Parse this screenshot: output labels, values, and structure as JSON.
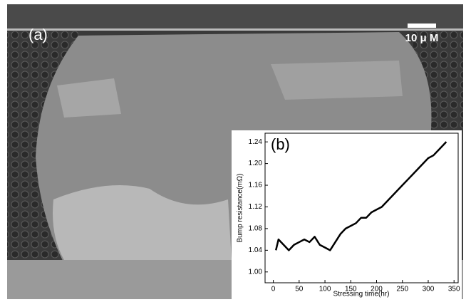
{
  "image": {
    "panel_label": "(a)",
    "scale_bar_label": "10 μ M"
  },
  "chart_data": {
    "type": "line",
    "panel_label": "(b)",
    "x_label": "Stressing time(hr)",
    "y_label": "Bump resistance(mΩ)",
    "x": [
      5,
      10,
      20,
      30,
      40,
      50,
      60,
      70,
      80,
      90,
      100,
      110,
      120,
      130,
      140,
      150,
      160,
      170,
      180,
      190,
      200,
      210,
      220,
      230,
      240,
      250,
      260,
      270,
      280,
      290,
      300,
      310,
      320,
      330,
      335
    ],
    "values": [
      1.04,
      1.06,
      1.05,
      1.04,
      1.05,
      1.055,
      1.06,
      1.055,
      1.065,
      1.05,
      1.045,
      1.04,
      1.055,
      1.07,
      1.08,
      1.085,
      1.09,
      1.1,
      1.1,
      1.11,
      1.115,
      1.12,
      1.13,
      1.14,
      1.15,
      1.16,
      1.17,
      1.18,
      1.19,
      1.2,
      1.21,
      1.215,
      1.225,
      1.235,
      1.24
    ],
    "color": "#000000",
    "xlim": [
      -16,
      358
    ],
    "xticks": [
      0,
      50,
      100,
      150,
      200,
      250,
      300,
      350
    ],
    "ylim": [
      0.98,
      1.256
    ],
    "yticks": [
      {
        "value": 1.0,
        "label": "1.00"
      },
      1.04,
      1.08,
      1.12,
      1.16,
      {
        "value": 1.2,
        "label": "1.20"
      },
      1.24
    ]
  }
}
